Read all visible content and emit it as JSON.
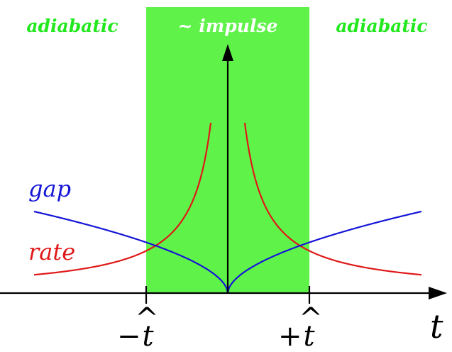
{
  "regions": {
    "left_label": "adiabatic",
    "center_label": "~ impulse",
    "right_label": "adiabatic"
  },
  "curves": {
    "gap_label": "gap",
    "rate_label": "rate"
  },
  "axis": {
    "time_label": "t",
    "tick_minus_sign": "−",
    "tick_plus_sign": "+",
    "tick_variable": "t",
    "tick_accent": "^"
  },
  "colors": {
    "impulse_band": "#5ff34a",
    "region_text": "#22e81e",
    "impulse_text": "#ffffff",
    "gap": "#1515d6",
    "rate": "#e01818",
    "axis": "#000000"
  }
}
